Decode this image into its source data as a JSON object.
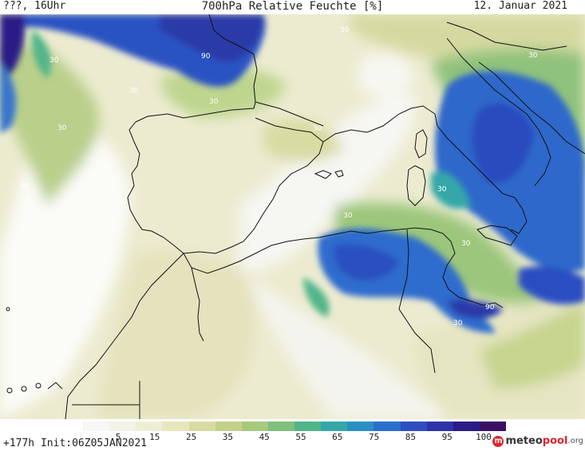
{
  "header": {
    "left": "???, 16Uhr",
    "title": "700hPa Relative Feuchte [%]",
    "date": "12. Januar 2021"
  },
  "footer": {
    "run_info": "+177h Init:06Z05JAN2021",
    "logo_brand": "meteo",
    "logo_accent": "pool",
    "logo_tld": ".org"
  },
  "colorbar": {
    "ticks": [
      "5",
      "15",
      "25",
      "35",
      "45",
      "55",
      "65",
      "75",
      "85",
      "95",
      "100"
    ],
    "colors": [
      "#f7f7f5",
      "#f3f3e8",
      "#eeeed4",
      "#e7e6bd",
      "#d8dba2",
      "#c2d28c",
      "#a6c97e",
      "#7fc07a",
      "#52b58a",
      "#36a7a8",
      "#2a90c4",
      "#2a6fce",
      "#2c4ec2",
      "#2f33a8",
      "#2b1b86",
      "#3a0f63"
    ]
  },
  "contour_labels": [
    "30",
    "30",
    "90",
    "30",
    "30",
    "30",
    "30",
    "30",
    "30",
    "30",
    "30",
    "30",
    "90",
    "30",
    "30"
  ]
}
